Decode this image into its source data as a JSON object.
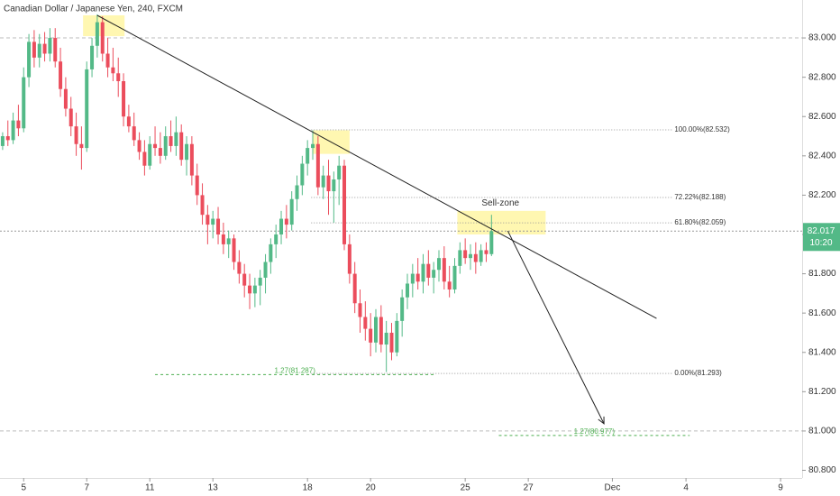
{
  "chart_data": {
    "type": "candlestick",
    "title": "Canadian Dollar / Japanese Yen, 240, FXCM",
    "up_color": "#53b987",
    "down_color": "#eb4d5c",
    "open": [
      82.45,
      82.5,
      82.48,
      82.58,
      82.54,
      82.8,
      82.98,
      82.9,
      82.97,
      82.92,
      83.0,
      82.88,
      82.74,
      82.64,
      82.55,
      82.46,
      82.44,
      82.84,
      82.96,
      83.08,
      82.92,
      82.85,
      82.82,
      82.78,
      82.6,
      82.55,
      82.48,
      82.42,
      82.35,
      82.46,
      82.44,
      82.4,
      82.5,
      82.45,
      82.52,
      82.38,
      82.46,
      82.3,
      82.2,
      82.1,
      82.05,
      82.08,
      82.0,
      81.95,
      81.98,
      81.86,
      81.8,
      81.74,
      81.7,
      81.74,
      81.78,
      81.86,
      81.95,
      82.0,
      82.08,
      82.05,
      82.18,
      82.25,
      82.36,
      82.44,
      82.46,
      82.24,
      82.3,
      82.22,
      82.28,
      82.35,
      81.95,
      81.8,
      81.65,
      81.58,
      81.52,
      81.45,
      81.58,
      81.44,
      81.5,
      81.4,
      81.56,
      81.68,
      81.75,
      81.8,
      81.76,
      81.85,
      81.78,
      81.82,
      81.88,
      81.76,
      81.72,
      81.84,
      81.92,
      81.88,
      81.9,
      81.86,
      81.92,
      81.9
    ],
    "high": [
      82.52,
      82.58,
      82.62,
      82.66,
      82.85,
      83.02,
      83.04,
      83.02,
      83.03,
      83.05,
      83.05,
      82.95,
      82.8,
      82.7,
      82.62,
      82.55,
      82.88,
      83.0,
      83.12,
      83.11,
      83.0,
      82.95,
      82.9,
      82.82,
      82.66,
      82.62,
      82.52,
      82.48,
      82.5,
      82.55,
      82.52,
      82.55,
      82.58,
      82.6,
      82.56,
      82.5,
      82.5,
      82.36,
      82.26,
      82.15,
      82.12,
      82.14,
      82.06,
      82.02,
      82.0,
      81.92,
      81.85,
      81.8,
      81.78,
      81.82,
      81.9,
      81.98,
      82.05,
      82.12,
      82.15,
      82.22,
      82.3,
      82.4,
      82.48,
      82.53,
      82.5,
      82.35,
      82.38,
      82.32,
      82.4,
      82.38,
      82.0,
      81.86,
      81.72,
      81.66,
      81.6,
      81.62,
      81.64,
      81.56,
      81.55,
      81.6,
      81.72,
      81.8,
      81.85,
      81.88,
      81.9,
      81.92,
      81.86,
      81.92,
      81.94,
      81.84,
      81.88,
      81.96,
      81.98,
      81.95,
      81.96,
      81.95,
      81.96,
      82.1
    ],
    "low": [
      82.43,
      82.45,
      82.46,
      82.5,
      82.52,
      82.75,
      82.85,
      82.85,
      82.88,
      82.88,
      82.85,
      82.7,
      82.6,
      82.5,
      82.4,
      82.33,
      82.42,
      82.8,
      82.9,
      82.88,
      82.8,
      82.78,
      82.7,
      82.55,
      82.52,
      82.45,
      82.38,
      82.3,
      82.33,
      82.4,
      82.36,
      82.38,
      82.42,
      82.4,
      82.35,
      82.3,
      82.25,
      82.15,
      82.05,
      81.95,
      81.98,
      81.95,
      81.9,
      81.88,
      81.82,
      81.75,
      81.68,
      81.62,
      81.63,
      81.64,
      81.7,
      81.8,
      81.88,
      81.95,
      81.98,
      82.02,
      82.12,
      82.2,
      82.3,
      82.38,
      82.2,
      82.18,
      82.1,
      82.06,
      82.15,
      81.92,
      81.75,
      81.6,
      81.5,
      81.46,
      81.38,
      81.4,
      81.4,
      81.3,
      81.36,
      81.38,
      81.48,
      81.62,
      81.68,
      81.72,
      81.7,
      81.74,
      81.7,
      81.76,
      81.72,
      81.68,
      81.7,
      81.8,
      81.85,
      81.82,
      81.8,
      81.84,
      81.86,
      81.89
    ],
    "close": [
      82.5,
      82.48,
      82.58,
      82.54,
      82.8,
      82.98,
      82.9,
      82.97,
      82.92,
      83.0,
      82.88,
      82.74,
      82.64,
      82.55,
      82.46,
      82.44,
      82.84,
      82.96,
      83.08,
      82.92,
      82.85,
      82.82,
      82.78,
      82.6,
      82.55,
      82.48,
      82.42,
      82.35,
      82.46,
      82.44,
      82.4,
      82.5,
      82.45,
      82.52,
      82.38,
      82.46,
      82.3,
      82.2,
      82.1,
      82.05,
      82.08,
      82.0,
      81.95,
      81.98,
      81.86,
      81.8,
      81.74,
      81.7,
      81.74,
      81.78,
      81.86,
      81.95,
      82.0,
      82.08,
      82.05,
      82.18,
      82.25,
      82.36,
      82.44,
      82.46,
      82.24,
      82.3,
      82.22,
      82.28,
      82.35,
      81.95,
      81.8,
      81.65,
      81.58,
      81.52,
      81.45,
      81.58,
      81.44,
      81.5,
      81.4,
      81.56,
      81.68,
      81.75,
      81.8,
      81.76,
      81.85,
      81.78,
      81.82,
      81.88,
      81.76,
      81.72,
      81.84,
      81.92,
      81.88,
      81.9,
      81.86,
      81.92,
      81.9,
      82.017
    ],
    "xlim": [
      -0.5,
      152.1
    ],
    "xticks": [
      {
        "value": 4,
        "label": "5"
      },
      {
        "value": 16,
        "label": "7"
      },
      {
        "value": 28,
        "label": "11"
      },
      {
        "value": 40,
        "label": "13"
      },
      {
        "value": 58,
        "label": "18"
      },
      {
        "value": 70,
        "label": "20"
      },
      {
        "value": 88,
        "label": "25"
      },
      {
        "value": 100,
        "label": "27"
      },
      {
        "value": 116,
        "label": "Dec"
      },
      {
        "value": 130,
        "label": "4"
      },
      {
        "value": 148,
        "label": "9"
      }
    ],
    "ylim": [
      80.761,
      83.193
    ],
    "yticks": [
      {
        "value": 80.8,
        "label": "80.800"
      },
      {
        "value": 81,
        "label": "81.000"
      },
      {
        "value": 81.2,
        "label": "81.200"
      },
      {
        "value": 81.4,
        "label": "81.400"
      },
      {
        "value": 81.6,
        "label": "81.600"
      },
      {
        "value": 81.8,
        "label": "81.800"
      },
      {
        "value": 82,
        "label": "82.000"
      },
      {
        "value": 82.2,
        "label": "82.200"
      },
      {
        "value": 82.4,
        "label": "82.400"
      },
      {
        "value": 82.6,
        "label": "82.600"
      },
      {
        "value": 82.8,
        "label": "82.800"
      },
      {
        "value": 83,
        "label": "83.000"
      }
    ],
    "hlines": [
      83,
      81
    ],
    "fib_range": [
      58.7,
      127.3
    ],
    "fib_levels": [
      {
        "value": 82.532,
        "label": "100.00%(82.532)"
      },
      {
        "value": 82.188,
        "label": "72.22%(82.188)"
      },
      {
        "value": 82.059,
        "label": "61.80%(82.059)"
      },
      {
        "value": 81.293,
        "label": "0.00%(81.293)"
      }
    ],
    "extensions": [
      {
        "value": 81.287,
        "label": "1.27(81.287)",
        "x": [
          29,
          82.2
        ]
      },
      {
        "value": 80.977,
        "label": "1.27(80.977)",
        "x": [
          94.4,
          130.7
        ]
      }
    ],
    "zones": [
      {
        "x": [
          15.3,
          23.2
        ],
        "y": [
          83.009,
          83.115
        ]
      },
      {
        "x": [
          59,
          66
        ],
        "y": [
          82.41,
          82.53
        ]
      },
      {
        "x": [
          86.5,
          103.3
        ],
        "y": [
          82.0,
          82.12
        ]
      }
    ],
    "zone_color": "#fff59d",
    "trendline": {
      "x": [
        18,
        124.4
      ],
      "y": [
        83.115,
        81.573
      ]
    },
    "arrow": {
      "x": [
        96.1,
        114.4
      ],
      "y": [
        82.018,
        81.037
      ]
    },
    "annotation": {
      "text": "Sell-zone",
      "x": 94.7,
      "y": 82.16
    },
    "last_price": 82.017,
    "countdown": "10:20"
  }
}
